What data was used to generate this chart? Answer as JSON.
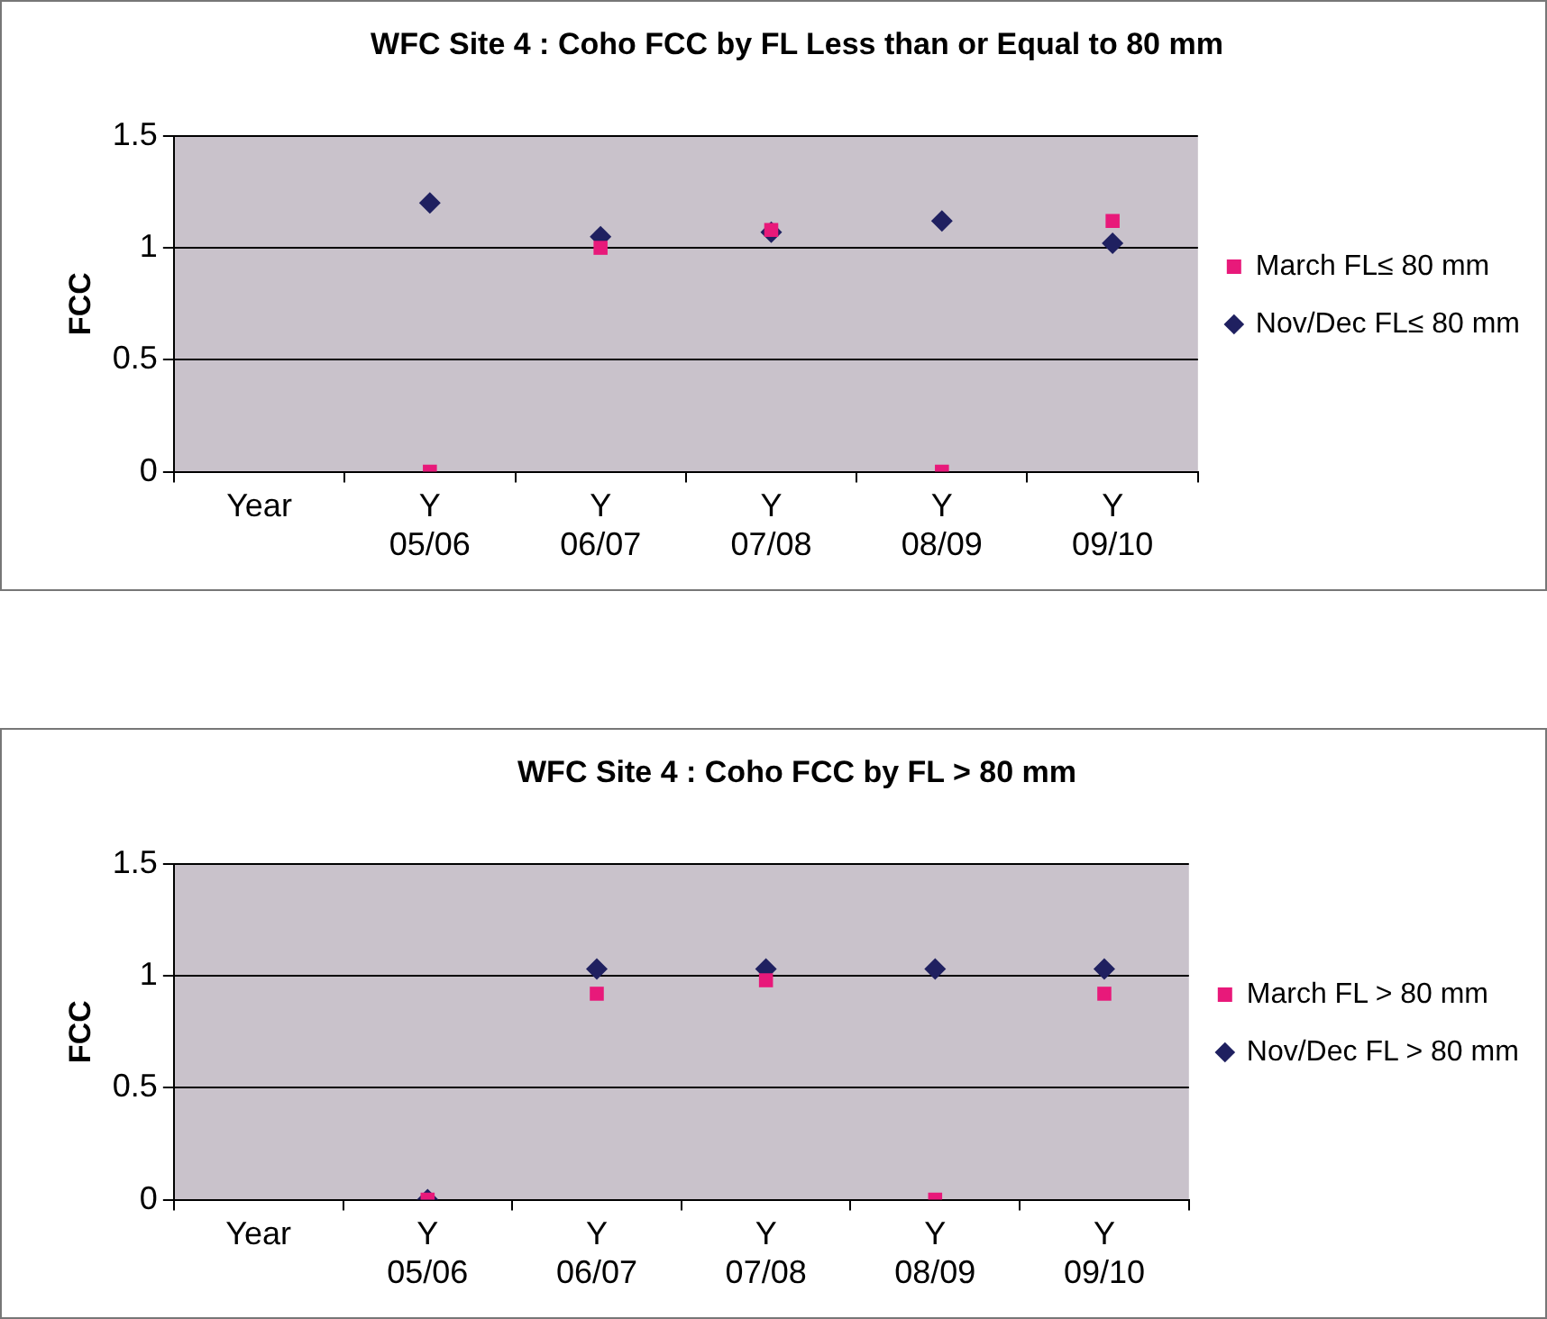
{
  "chart_data": [
    {
      "type": "scatter",
      "title": "WFC Site 4 : Coho FCC by FL Less than or Equal to 80 mm",
      "ylabel": "FCC",
      "categories": [
        "Year",
        "Y 05/06",
        "Y 06/07",
        "Y 07/08",
        "Y 08/09",
        "Y 09/10"
      ],
      "series": [
        {
          "name": "Nov/Dec FL≤ 80 mm",
          "color": "#1f2060",
          "marker": "diamond",
          "values": [
            null,
            1.2,
            1.05,
            1.07,
            1.12,
            1.02
          ]
        },
        {
          "name": "March FL≤ 80 mm",
          "color": "#e8197a",
          "marker": "square",
          "values": [
            null,
            0,
            1.0,
            1.08,
            0,
            1.12
          ]
        }
      ],
      "ylim": [
        0,
        1.5
      ],
      "yticks": [
        0,
        0.5,
        1,
        1.5
      ],
      "grid": "y",
      "legend": "right"
    },
    {
      "type": "scatter",
      "title": "WFC Site 4 : Coho FCC by FL > 80 mm",
      "ylabel": "FCC",
      "categories": [
        "Year",
        "Y 05/06",
        "Y 06/07",
        "Y 07/08",
        "Y 08/09",
        "Y 09/10"
      ],
      "series": [
        {
          "name": "Nov/Dec FL > 80 mm",
          "color": "#1f2060",
          "marker": "diamond",
          "values": [
            null,
            0,
            1.03,
            1.03,
            1.03,
            1.03
          ]
        },
        {
          "name": "March FL > 80 mm",
          "color": "#e8197a",
          "marker": "square",
          "values": [
            null,
            0,
            0.92,
            0.98,
            0,
            0.92
          ]
        }
      ],
      "ylim": [
        0,
        1.5
      ],
      "yticks": [
        0,
        0.5,
        1,
        1.5
      ],
      "grid": "y",
      "legend": "right"
    }
  ]
}
